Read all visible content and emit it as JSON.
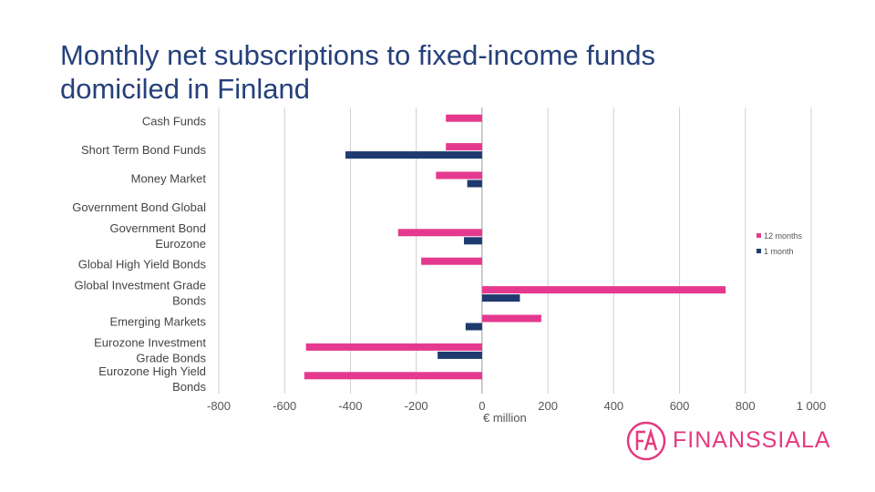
{
  "title": "Monthly net subscriptions to fixed-income funds domiciled in Finland",
  "logo_text": "FINANSSIALA",
  "chart_data": {
    "type": "bar",
    "orientation": "horizontal",
    "categories": [
      "Cash Funds",
      "Short Term Bond Funds",
      "Money Market",
      "Government Bond Global",
      "Government Bond Eurozone",
      "Global High Yield Bonds",
      "Global Investment Grade Bonds",
      "Emerging Markets",
      "Eurozone Investment Grade Bonds",
      "Eurozone High Yield Bonds"
    ],
    "series": [
      {
        "name": "12 months",
        "color": "#e5398f",
        "values": [
          -110,
          -110,
          -140,
          0,
          -255,
          -185,
          740,
          180,
          -535,
          -540
        ]
      },
      {
        "name": "1 month",
        "color": "#1f3a6e",
        "values": [
          0,
          -415,
          -45,
          0,
          -55,
          0,
          115,
          -50,
          -135,
          0
        ]
      }
    ],
    "xlabel": "€ million",
    "xlim": [
      -800,
      1000
    ],
    "xticks": [
      -800,
      -600,
      -400,
      -200,
      0,
      200,
      400,
      600,
      800,
      1000
    ],
    "xtick_labels": [
      "-800",
      "-600",
      "-400",
      "-200",
      "0",
      "200",
      "400",
      "600",
      "800",
      "1 000"
    ],
    "grid": true,
    "legend_position": "right"
  }
}
